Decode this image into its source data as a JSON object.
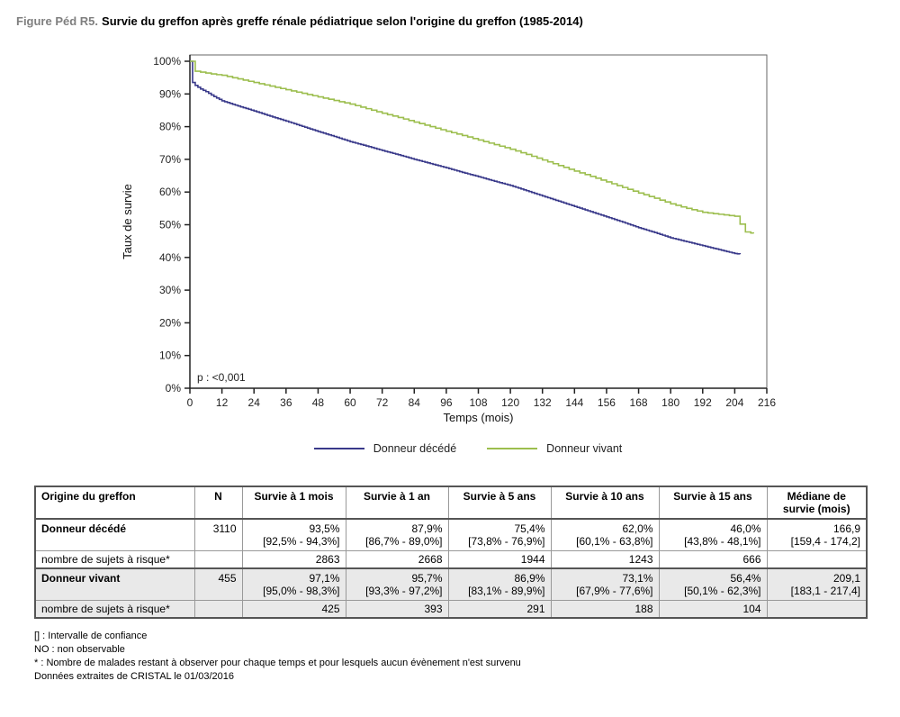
{
  "title": {
    "prefix": "Figure Péd R5.",
    "text": "Survie du greffon après greffe rénale pédiatrique selon l'origine du greffon (1985-2014)"
  },
  "chart_data": {
    "type": "line",
    "subtype": "kaplan-meier-step",
    "title": "Survie du greffon après greffe rénale pédiatrique selon l'origine du greffon (1985-2014)",
    "xlabel": "Temps (mois)",
    "ylabel": "Taux de survie",
    "xlim": [
      0,
      216
    ],
    "ylim": [
      0,
      100
    ],
    "x_tick_interval": 12,
    "y_tick_interval": 10,
    "y_tick_format": "percent",
    "grid": false,
    "legend_position": "bottom",
    "annotation": "p : <0,001",
    "series": [
      {
        "name": "Donneur décédé",
        "color": "#39398a",
        "step_months": 1,
        "points": [
          [
            0,
            100
          ],
          [
            0.5,
            96.5
          ],
          [
            1,
            93.5
          ],
          [
            2,
            92.6
          ],
          [
            4,
            91.5
          ],
          [
            6,
            90.7
          ],
          [
            9,
            89.2
          ],
          [
            12,
            87.9
          ],
          [
            18,
            86.3
          ],
          [
            24,
            84.8
          ],
          [
            30,
            83.2
          ],
          [
            36,
            81.7
          ],
          [
            42,
            80.1
          ],
          [
            48,
            78.5
          ],
          [
            54,
            77.0
          ],
          [
            60,
            75.4
          ],
          [
            66,
            74.1
          ],
          [
            72,
            72.7
          ],
          [
            78,
            71.4
          ],
          [
            84,
            70.0
          ],
          [
            90,
            68.7
          ],
          [
            96,
            67.4
          ],
          [
            102,
            66.0
          ],
          [
            108,
            64.7
          ],
          [
            114,
            63.3
          ],
          [
            120,
            62.0
          ],
          [
            126,
            60.4
          ],
          [
            132,
            58.8
          ],
          [
            138,
            57.2
          ],
          [
            144,
            55.6
          ],
          [
            150,
            54.0
          ],
          [
            156,
            52.4
          ],
          [
            162,
            50.8
          ],
          [
            168,
            49.1
          ],
          [
            174,
            47.6
          ],
          [
            180,
            46.0
          ],
          [
            186,
            44.8
          ],
          [
            192,
            43.6
          ],
          [
            198,
            42.4
          ],
          [
            204,
            41.2
          ],
          [
            206,
            41.0
          ]
        ]
      },
      {
        "name": "Donneur vivant",
        "color": "#9cbe4e",
        "step_months": 2,
        "points": [
          [
            0,
            100
          ],
          [
            0.5,
            98.2
          ],
          [
            1,
            97.1
          ],
          [
            3,
            96.8
          ],
          [
            6,
            96.4
          ],
          [
            9,
            96.0
          ],
          [
            12,
            95.7
          ],
          [
            18,
            94.6
          ],
          [
            24,
            93.5
          ],
          [
            30,
            92.4
          ],
          [
            36,
            91.3
          ],
          [
            42,
            90.2
          ],
          [
            48,
            89.1
          ],
          [
            54,
            88.0
          ],
          [
            60,
            86.9
          ],
          [
            66,
            85.5
          ],
          [
            72,
            84.1
          ],
          [
            78,
            82.8
          ],
          [
            84,
            81.4
          ],
          [
            90,
            80.0
          ],
          [
            96,
            78.6
          ],
          [
            102,
            77.3
          ],
          [
            108,
            75.9
          ],
          [
            114,
            74.5
          ],
          [
            120,
            73.1
          ],
          [
            126,
            71.5
          ],
          [
            132,
            69.8
          ],
          [
            138,
            68.1
          ],
          [
            144,
            66.4
          ],
          [
            150,
            64.8
          ],
          [
            156,
            63.1
          ],
          [
            162,
            61.4
          ],
          [
            168,
            59.7
          ],
          [
            174,
            58.1
          ],
          [
            180,
            56.4
          ],
          [
            186,
            55.0
          ],
          [
            192,
            53.8
          ],
          [
            198,
            53.2
          ],
          [
            204,
            52.6
          ],
          [
            206,
            50.2
          ],
          [
            208,
            47.8
          ],
          [
            211,
            47.3
          ]
        ]
      }
    ]
  },
  "table": {
    "headers": [
      "Origine du greffon",
      "N",
      "Survie à 1 mois",
      "Survie à 1 an",
      "Survie à 5 ans",
      "Survie à 10 ans",
      "Survie à 15 ans",
      "Médiane de survie (mois)"
    ],
    "groups": [
      {
        "name": "Donneur décédé",
        "n": "3110",
        "values": [
          "93,5%",
          "87,9%",
          "75,4%",
          "62,0%",
          "46,0%",
          "166,9"
        ],
        "ci": [
          "[92,5% - 94,3%]",
          "[86,7% - 89,0%]",
          "[73,8% - 76,9%]",
          "[60,1% - 63,8%]",
          "[43,8% - 48,1%]",
          "[159,4 - 174,2]"
        ],
        "risk_label": "nombre de sujets à risque*",
        "risk": [
          "2863",
          "2668",
          "1944",
          "1243",
          "666"
        ]
      },
      {
        "name": "Donneur vivant",
        "n": "455",
        "values": [
          "97,1%",
          "95,7%",
          "86,9%",
          "73,1%",
          "56,4%",
          "209,1"
        ],
        "ci": [
          "[95,0% - 98,3%]",
          "[93,3% - 97,2%]",
          "[83,1% - 89,9%]",
          "[67,9% - 77,6%]",
          "[50,1% - 62,3%]",
          "[183,1 - 217,4]"
        ],
        "risk_label": "nombre de sujets à risque*",
        "risk": [
          "425",
          "393",
          "291",
          "188",
          "104"
        ]
      }
    ]
  },
  "footnotes": [
    "[] : Intervalle de confiance",
    "NO : non observable",
    "* : Nombre de malades restant à observer pour chaque temps et pour lesquels aucun évènement n'est survenu",
    "Données extraites de CRISTAL le 01/03/2016"
  ]
}
